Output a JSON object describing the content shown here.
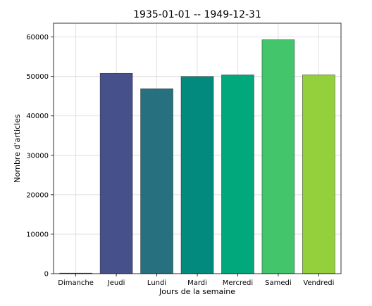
{
  "chart_data": {
    "type": "bar",
    "title": "1935-01-01 -- 1949-12-31",
    "xlabel": "Jours de la semaine",
    "ylabel": "Nombre d'articles",
    "categories": [
      "Dimanche",
      "Jeudi",
      "Lundi",
      "Mardi",
      "Mercredi",
      "Samedi",
      "Vendredi"
    ],
    "values": [
      150,
      50800,
      46900,
      50000,
      50400,
      59300,
      50400
    ],
    "colors": [
      "#440154",
      "#46508a",
      "#26707f",
      "#028a7e",
      "#00a87b",
      "#43c66b",
      "#94d03c"
    ],
    "ylim": [
      0,
      63500
    ],
    "yticks": [
      0,
      10000,
      20000,
      30000,
      40000,
      50000,
      60000
    ],
    "grid": true
  }
}
